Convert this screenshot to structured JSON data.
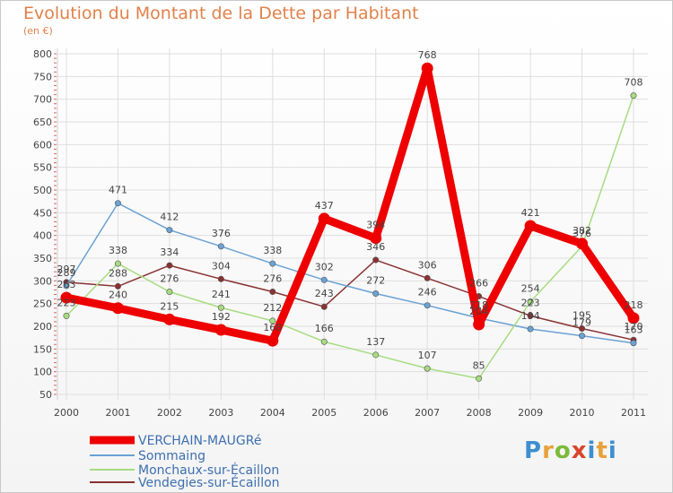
{
  "chart_data": {
    "type": "line",
    "title": "Evolution du Montant de la Dette par Habitant",
    "subtitle": "(en €)",
    "xlabel": "",
    "ylabel": "",
    "x": [
      "2000",
      "2001",
      "2002",
      "2003",
      "2004",
      "2005",
      "2006",
      "2007",
      "2008",
      "2009",
      "2010",
      "2011"
    ],
    "ylim": [
      50,
      800
    ],
    "yticks": [
      50,
      100,
      150,
      200,
      250,
      300,
      350,
      400,
      450,
      500,
      550,
      600,
      650,
      700,
      750,
      800
    ],
    "series": [
      {
        "name": "VERCHAIN-MAUGRé",
        "color": "#ee0000",
        "values": [
          263,
          240,
          215,
          192,
          168,
          437,
          394,
          768,
          204,
          421,
          382,
          218
        ]
      },
      {
        "name": "Sommaing",
        "color": "#6aa2d4",
        "values": [
          289,
          471,
          412,
          376,
          338,
          302,
          272,
          246,
          218,
          194,
          179,
          163
        ]
      },
      {
        "name": "Monchaux-sur-Écaillon",
        "color": "#a6dc80",
        "values": [
          223,
          338,
          276,
          241,
          212,
          166,
          137,
          107,
          85,
          254,
          376,
          708
        ]
      },
      {
        "name": "Vendegies-sur-Écaillon",
        "color": "#8a3232",
        "values": [
          297,
          288,
          334,
          304,
          276,
          243,
          346,
          306,
          266,
          223,
          195,
          170
        ]
      }
    ],
    "legend_position": "bottom-left",
    "grid": true
  },
  "brand": {
    "letters": [
      "P",
      "r",
      "o",
      "x",
      "i",
      "t",
      "i"
    ]
  }
}
